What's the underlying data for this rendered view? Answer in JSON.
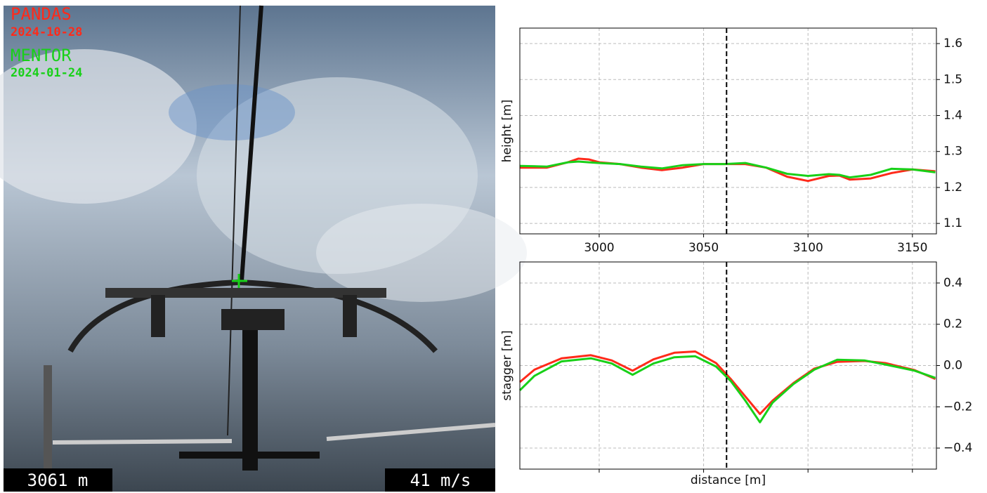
{
  "overlay": {
    "legend": [
      {
        "name": "PANDAS",
        "date": "2024-10-28",
        "color": "#ff2a1a"
      },
      {
        "name": "MENTOR",
        "date": "2024-01-24",
        "color": "#18d018"
      }
    ],
    "distance": {
      "value": 3061,
      "label": "3061 m"
    },
    "speed": {
      "value": 41,
      "label": "41 m/s"
    }
  },
  "chart_data": [
    {
      "type": "line",
      "ylabel": "height [m]",
      "x": [
        2962,
        2975,
        2985,
        2990,
        2995,
        3000,
        3010,
        3020,
        3030,
        3040,
        3050,
        3060,
        3070,
        3080,
        3090,
        3100,
        3110,
        3115,
        3120,
        3130,
        3140,
        3150,
        3161
      ],
      "series": [
        {
          "color": "#ff2a1a",
          "values": [
            1.255,
            1.255,
            1.27,
            1.28,
            1.278,
            1.27,
            1.265,
            1.255,
            1.248,
            1.255,
            1.265,
            1.265,
            1.265,
            1.255,
            1.23,
            1.218,
            1.232,
            1.233,
            1.222,
            1.225,
            1.24,
            1.25,
            1.245
          ]
        },
        {
          "color": "#18d018",
          "values": [
            1.26,
            1.258,
            1.27,
            1.272,
            1.27,
            1.268,
            1.265,
            1.258,
            1.253,
            1.262,
            1.265,
            1.265,
            1.268,
            1.255,
            1.238,
            1.232,
            1.237,
            1.235,
            1.228,
            1.235,
            1.252,
            1.25,
            1.242
          ]
        }
      ],
      "xlim": [
        2962,
        3161.5
      ],
      "xticks": [
        3000,
        3050,
        3100,
        3150
      ],
      "show_xtick_labels": true,
      "ylim": [
        1.071,
        1.643
      ],
      "yticks": [
        1.1,
        1.2,
        1.3,
        1.4,
        1.5,
        1.6
      ],
      "grid": true
    },
    {
      "type": "line",
      "ylabel": "stagger [m]",
      "xlabel": "distance [m]",
      "x": [
        2962,
        2969,
        2982,
        2996,
        3006,
        3016,
        3026,
        3036,
        3046,
        3056,
        3063,
        3070,
        3077,
        3083,
        3093,
        3103,
        3114,
        3127,
        3137,
        3151,
        3161
      ],
      "series": [
        {
          "color": "#ff2a1a",
          "values": [
            -0.08,
            -0.02,
            0.035,
            0.05,
            0.025,
            -0.025,
            0.03,
            0.062,
            0.068,
            0.012,
            -0.065,
            -0.15,
            -0.235,
            -0.17,
            -0.085,
            -0.015,
            0.018,
            0.022,
            0.012,
            -0.022,
            -0.065
          ]
        },
        {
          "color": "#18d018",
          "values": [
            -0.12,
            -0.05,
            0.02,
            0.035,
            0.01,
            -0.045,
            0.01,
            0.04,
            0.045,
            -0.005,
            -0.075,
            -0.17,
            -0.275,
            -0.18,
            -0.09,
            -0.02,
            0.028,
            0.025,
            0.005,
            -0.025,
            -0.06
          ]
        }
      ],
      "xlim": [
        2962,
        3161.5
      ],
      "xticks": [
        3000,
        3050,
        3100,
        3150
      ],
      "show_xtick_labels": false,
      "ylim": [
        -0.502,
        0.502
      ],
      "yticks": [
        {
          "value": -0.4,
          "label": "−0.4"
        },
        {
          "value": -0.2,
          "label": "−0.2"
        },
        {
          "value": 0,
          "label": "0.0"
        },
        0.2,
        0.4
      ],
      "grid": true
    }
  ]
}
